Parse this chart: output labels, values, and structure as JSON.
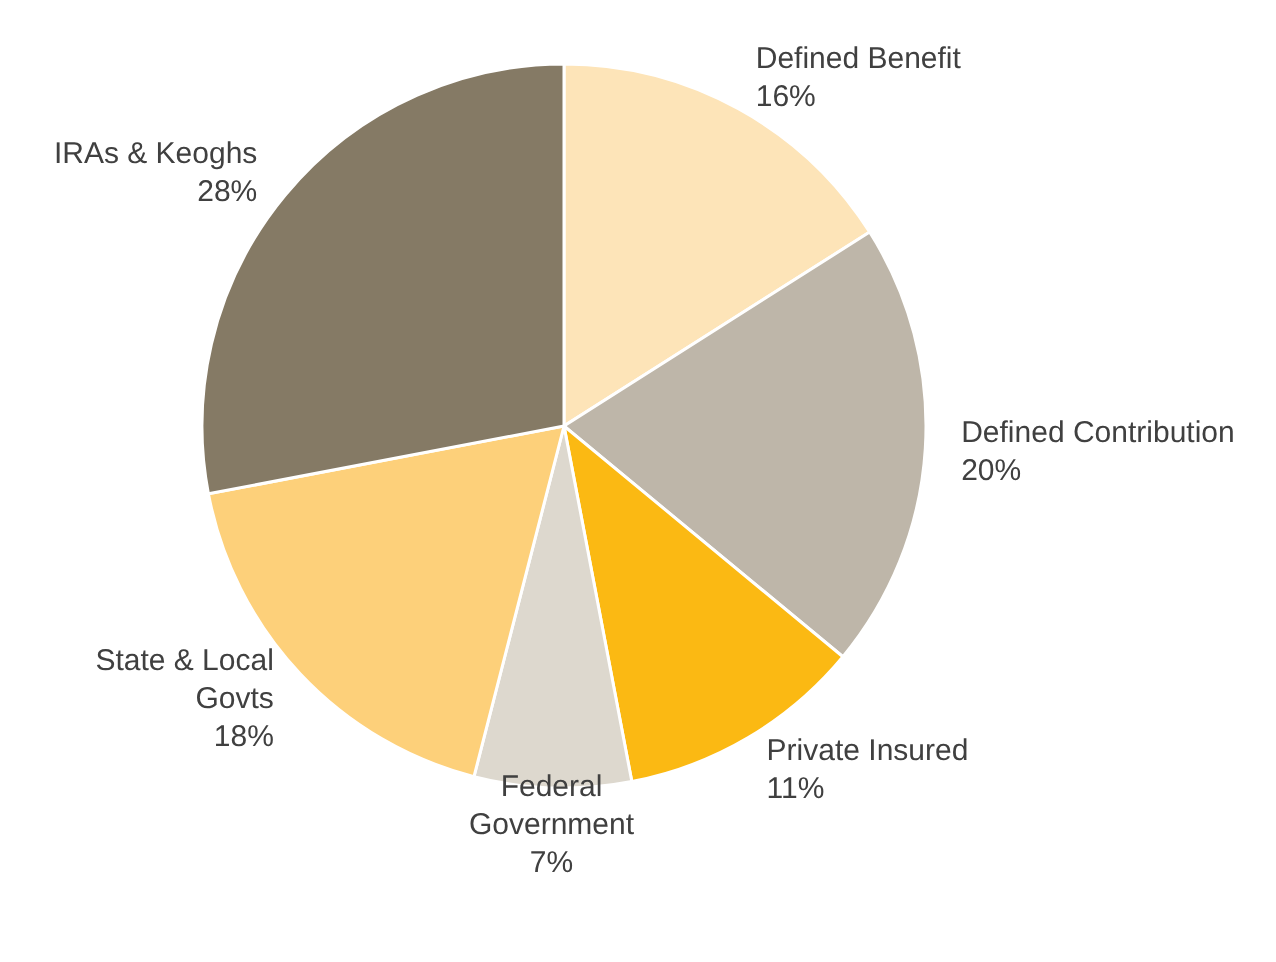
{
  "chart_data": {
    "type": "pie",
    "categories": [
      "Defined Benefit",
      "Defined Contribution",
      "Private Insured",
      "Federal Government",
      "State & Local Govts",
      "IRAs & Keoghs"
    ],
    "values": [
      16,
      20,
      11,
      7,
      18,
      28
    ],
    "colors": [
      "#fde4b8",
      "#beb6a9",
      "#fbb913",
      "#ddd8ce",
      "#fdd07a",
      "#857a65"
    ],
    "value_labels": [
      "16%",
      "20%",
      "11%",
      "7%",
      "18%",
      "28%"
    ],
    "legend": false
  }
}
